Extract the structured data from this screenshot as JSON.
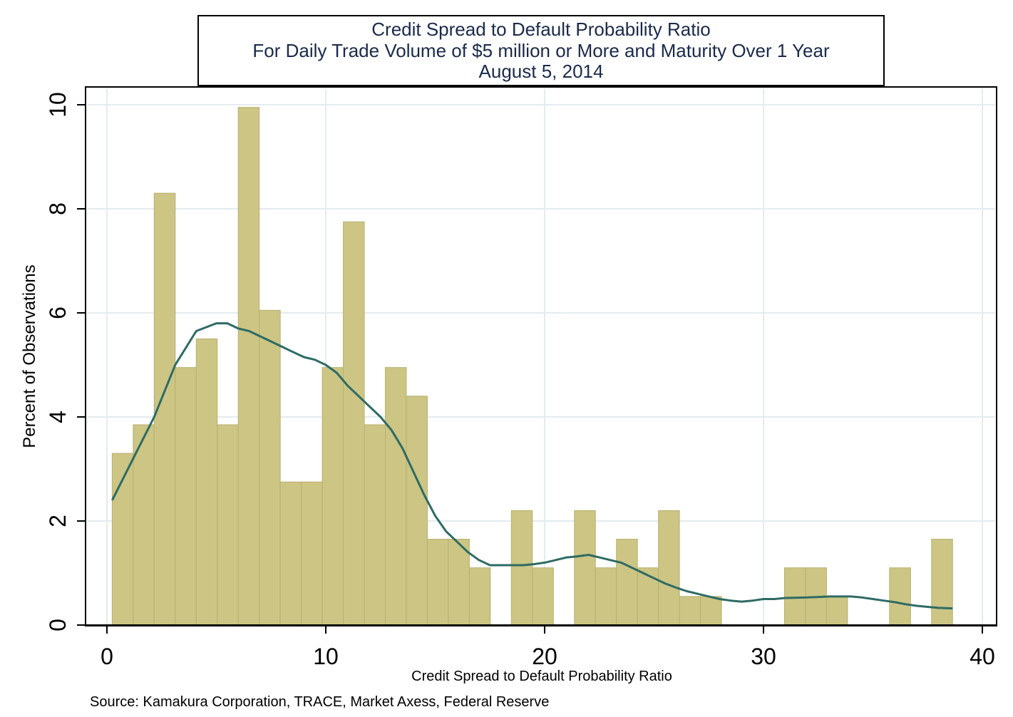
{
  "chart_data": {
    "type": "bar",
    "title_lines": [
      "Credit Spread to Default Probability Ratio",
      "For Daily Trade Volume of $5 million or More and Maturity Over 1 Year",
      "August 5, 2014"
    ],
    "xlabel": "Credit Spread to Default Probability Ratio",
    "ylabel": "Percent of Observations",
    "source": "Source: Kamakura Corporation, TRACE, Market Axess, Federal Reserve",
    "xlim": [
      0,
      40
    ],
    "ylim": [
      0,
      10
    ],
    "xticks": [
      "0",
      "10",
      "20",
      "30",
      "40"
    ],
    "yticks": [
      "0",
      "2",
      "4",
      "6",
      "8",
      "10"
    ],
    "grid": true,
    "colors": {
      "bar": "#ccc584",
      "bar_edge": "#b8b070",
      "curve": "#2e6b64",
      "grid": "#e3ecef"
    },
    "bars": [
      {
        "x0": 0.24,
        "x1": 1.2,
        "value": 3.3
      },
      {
        "x0": 1.2,
        "x1": 2.16,
        "value": 3.85
      },
      {
        "x0": 2.16,
        "x1": 3.12,
        "value": 8.3
      },
      {
        "x0": 3.12,
        "x1": 4.08,
        "value": 4.95
      },
      {
        "x0": 4.08,
        "x1": 5.04,
        "value": 5.5
      },
      {
        "x0": 5.04,
        "x1": 6.0,
        "value": 3.85
      },
      {
        "x0": 6.0,
        "x1": 6.96,
        "value": 9.95
      },
      {
        "x0": 6.96,
        "x1": 7.92,
        "value": 6.05
      },
      {
        "x0": 7.92,
        "x1": 8.88,
        "value": 2.75
      },
      {
        "x0": 8.88,
        "x1": 9.84,
        "value": 2.75
      },
      {
        "x0": 9.84,
        "x1": 10.8,
        "value": 4.95
      },
      {
        "x0": 10.8,
        "x1": 11.76,
        "value": 7.75
      },
      {
        "x0": 11.76,
        "x1": 12.72,
        "value": 3.85
      },
      {
        "x0": 12.72,
        "x1": 13.68,
        "value": 4.95
      },
      {
        "x0": 13.68,
        "x1": 14.64,
        "value": 4.4
      },
      {
        "x0": 14.64,
        "x1": 15.6,
        "value": 1.65
      },
      {
        "x0": 15.6,
        "x1": 16.56,
        "value": 1.65
      },
      {
        "x0": 16.56,
        "x1": 17.52,
        "value": 1.1
      },
      {
        "x0": 18.48,
        "x1": 19.44,
        "value": 2.2
      },
      {
        "x0": 19.44,
        "x1": 20.4,
        "value": 1.1
      },
      {
        "x0": 21.36,
        "x1": 22.32,
        "value": 2.2
      },
      {
        "x0": 22.32,
        "x1": 23.28,
        "value": 1.1
      },
      {
        "x0": 23.28,
        "x1": 24.24,
        "value": 1.65
      },
      {
        "x0": 24.24,
        "x1": 25.2,
        "value": 1.1
      },
      {
        "x0": 25.2,
        "x1": 26.16,
        "value": 2.2
      },
      {
        "x0": 26.16,
        "x1": 27.12,
        "value": 0.55
      },
      {
        "x0": 27.12,
        "x1": 28.08,
        "value": 0.55
      },
      {
        "x0": 30.96,
        "x1": 31.92,
        "value": 1.1
      },
      {
        "x0": 31.92,
        "x1": 32.88,
        "value": 1.1
      },
      {
        "x0": 32.88,
        "x1": 33.84,
        "value": 0.55
      },
      {
        "x0": 35.76,
        "x1": 36.72,
        "value": 1.1
      },
      {
        "x0": 37.68,
        "x1": 38.64,
        "value": 1.65
      }
    ],
    "density_curve": {
      "x": [
        0.24,
        1.2,
        2.16,
        3.12,
        4.08,
        5.0,
        5.5,
        6.0,
        6.5,
        7.0,
        7.5,
        8.0,
        8.5,
        9.0,
        9.5,
        10.0,
        10.5,
        11.0,
        11.5,
        12.0,
        12.5,
        13.0,
        13.5,
        14.0,
        14.5,
        15.0,
        15.5,
        16.0,
        16.5,
        17.0,
        17.5,
        18.0,
        18.5,
        19.0,
        19.5,
        20.0,
        20.5,
        21.0,
        21.5,
        22.0,
        22.5,
        23.0,
        23.5,
        24.0,
        24.5,
        25.0,
        25.5,
        26.0,
        26.5,
        27.0,
        27.5,
        28.0,
        28.5,
        29.0,
        29.5,
        30.0,
        30.5,
        31.0,
        32.0,
        33.0,
        34.0,
        34.5,
        35.0,
        35.5,
        36.0,
        36.5,
        37.0,
        37.5,
        38.0,
        38.64
      ],
      "y": [
        2.4,
        3.2,
        4.0,
        5.0,
        5.65,
        5.8,
        5.8,
        5.7,
        5.65,
        5.55,
        5.45,
        5.35,
        5.25,
        5.15,
        5.1,
        5.0,
        4.85,
        4.6,
        4.4,
        4.2,
        4.0,
        3.75,
        3.4,
        2.95,
        2.5,
        2.1,
        1.8,
        1.6,
        1.4,
        1.25,
        1.15,
        1.15,
        1.15,
        1.15,
        1.17,
        1.2,
        1.25,
        1.3,
        1.32,
        1.35,
        1.3,
        1.25,
        1.2,
        1.1,
        1.0,
        0.9,
        0.8,
        0.72,
        0.65,
        0.6,
        0.55,
        0.5,
        0.47,
        0.45,
        0.47,
        0.5,
        0.5,
        0.52,
        0.53,
        0.55,
        0.55,
        0.53,
        0.5,
        0.47,
        0.44,
        0.4,
        0.37,
        0.35,
        0.33,
        0.32
      ]
    }
  }
}
